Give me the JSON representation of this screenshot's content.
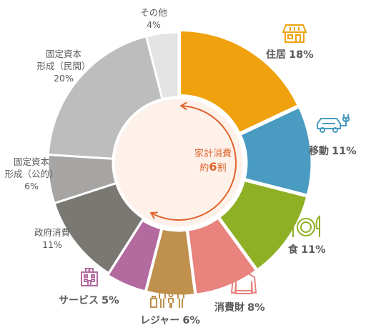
{
  "chart_data": {
    "type": "pie",
    "donut": true,
    "slices": [
      {
        "key": "housing",
        "label": "住居",
        "value": 18,
        "pct_text": "18%",
        "color": "#f0a20e",
        "icon": "house-icon"
      },
      {
        "key": "mobility",
        "label": "移動",
        "value": 11,
        "pct_text": "11%",
        "color": "#4a9bc2",
        "icon": "car-icon"
      },
      {
        "key": "food",
        "label": "食",
        "value": 11,
        "pct_text": "11%",
        "color": "#8fb025",
        "icon": "plate-icon"
      },
      {
        "key": "consumer-goods",
        "label": "消費財",
        "value": 8,
        "pct_text": "8%",
        "color": "#e8837d",
        "icon": "sweater-icon"
      },
      {
        "key": "leisure",
        "label": "レジャー",
        "value": 6,
        "pct_text": "6%",
        "color": "#bf914d",
        "icon": "family-icon"
      },
      {
        "key": "services",
        "label": "サービス",
        "value": 5,
        "pct_text": "5%",
        "color": "#b26a9f",
        "icon": "building-icon"
      },
      {
        "key": "government",
        "label": "政府消費",
        "value": 11,
        "pct_text": "11%",
        "color": "#7a7873"
      },
      {
        "key": "public-capital",
        "label": "固定資本\n形成（公的）",
        "value": 6,
        "pct_text": "6%",
        "color": "#a6a5a3"
      },
      {
        "key": "private-capital",
        "label": "固定資本\n形成（民間）",
        "value": 20,
        "pct_text": "20%",
        "color": "#bdbdbd"
      },
      {
        "key": "other",
        "label": "その他",
        "value": 4,
        "pct_text": "4%",
        "color": "#e4e4e4"
      }
    ],
    "center_label": {
      "line1": "家計消費",
      "prefix": "約",
      "number": "6",
      "suffix": "割"
    },
    "center_fill": "#fdf1ea",
    "accent_color": "#e0632b",
    "label_text_color": "#5a5a5a"
  }
}
